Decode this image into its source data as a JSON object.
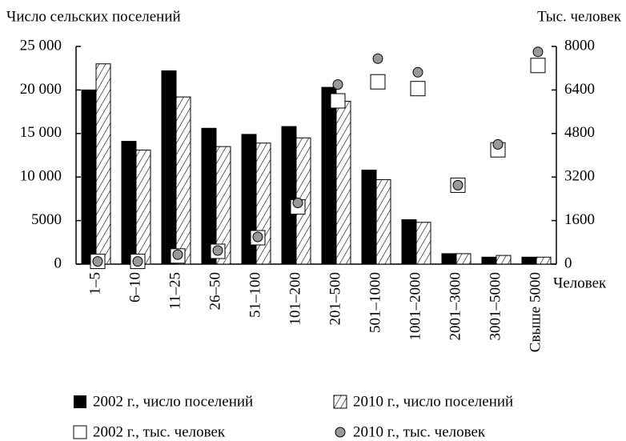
{
  "chart_data": {
    "type": "bar",
    "y_label": "Число сельских поселений",
    "y2_label": "Тыс. человек",
    "x_label": "Человек",
    "categories": [
      "1–5",
      "6–10",
      "11–25",
      "26–50",
      "51–100",
      "101–200",
      "201–500",
      "501–1000",
      "1001–2000",
      "2001–3000",
      "3001–5000",
      "Свыше 5000"
    ],
    "series": [
      {
        "name": "2002 г., число поселений",
        "color": "#000000",
        "kind": "bar",
        "fill": "solid",
        "values": [
          20000,
          14100,
          22200,
          15600,
          14900,
          15800,
          20300,
          10800,
          5100,
          1200,
          800,
          800
        ]
      },
      {
        "name": "2010 г., число поселений",
        "color": "#000000",
        "kind": "bar",
        "fill": "hatch",
        "values": [
          23000,
          13100,
          19200,
          13500,
          13900,
          14500,
          18700,
          9700,
          4800,
          1200,
          1000,
          800
        ]
      },
      {
        "name": "2002 г., тыс. человек",
        "color": "#ffffff",
        "kind": "marker",
        "marker": "square",
        "axis": "y2",
        "values": [
          100,
          100,
          300,
          470,
          970,
          2100,
          6000,
          6700,
          6450,
          2900,
          4200,
          7300
        ]
      },
      {
        "name": "2010 г., тыс. человек",
        "color": "#999999",
        "kind": "marker",
        "marker": "circle",
        "axis": "y2",
        "values": [
          100,
          100,
          350,
          500,
          1000,
          2250,
          6600,
          7550,
          7050,
          2900,
          4400,
          7800
        ]
      }
    ],
    "ylim": [
      0,
      25000
    ],
    "yticks": [
      0,
      5000,
      {
        "value": 10000,
        "label": "10 000"
      },
      {
        "value": 15000,
        "label": "15 000"
      },
      {
        "value": 20000,
        "label": "20 000"
      },
      {
        "value": 25000,
        "label": "25 000"
      }
    ],
    "y2lim": [
      0,
      8000
    ],
    "y2ticks": [
      0,
      1600,
      3200,
      4800,
      6400,
      8000
    ],
    "grid": false
  }
}
